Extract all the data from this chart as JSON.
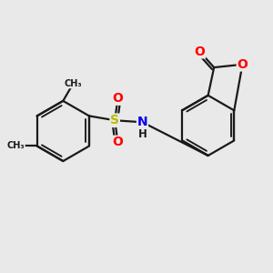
{
  "background_color": "#e9e9e9",
  "bond_color": "#1a1a1a",
  "bond_width": 1.6,
  "atom_colors": {
    "C": "#1a1a1a",
    "O": "#ff0000",
    "N": "#0000ee",
    "S": "#bbbb00",
    "H": "#1a1a1a"
  },
  "fig_width": 3.0,
  "fig_height": 3.0,
  "dpi": 100,
  "xlim": [
    -3.5,
    3.8
  ],
  "ylim": [
    -2.8,
    2.8
  ]
}
